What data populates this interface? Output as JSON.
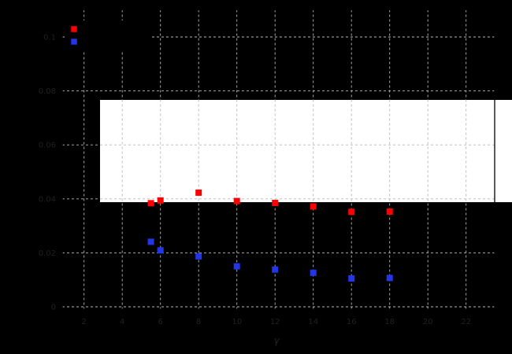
{
  "figure": {
    "background": "#000000",
    "grid_color": "#b8b8b8",
    "tick_label_color": "#202020",
    "axis_label_color": "#242424",
    "spine_color": "#000000",
    "white_box_fill": "#ffffff"
  },
  "chart_data": {
    "type": "scatter",
    "title": "",
    "xlabel": "γ",
    "ylabel": "",
    "grid": "dashed, both axes",
    "legend_position": "upper left",
    "xlim": [
      0.9,
      23.5
    ],
    "ylim": [
      0,
      0.11
    ],
    "x_ticks": [
      2,
      4,
      6,
      8,
      10,
      12,
      14,
      16,
      18,
      20,
      22
    ],
    "y_ticks": [
      0,
      0.02,
      0.04,
      0.06,
      0.08,
      0.1
    ],
    "y_tick_labels": [
      "0",
      "0.02",
      "0.04",
      "0.06",
      "0.08",
      "0.1"
    ],
    "x": [
      5.5,
      6,
      8,
      10,
      12,
      14,
      16,
      18
    ],
    "series": [
      {
        "name": "red-series",
        "label": "",
        "color": "#ff0000",
        "marker": "square",
        "y": [
          0.0384,
          0.0394,
          0.0423,
          0.0392,
          0.0385,
          0.0372,
          0.0352,
          0.0353
        ]
      },
      {
        "name": "blue-series",
        "label": "",
        "color": "#2236e8",
        "marker": "square",
        "y": [
          0.0241,
          0.0209,
          0.0187,
          0.015,
          0.0138,
          0.0126,
          0.0105,
          0.0107
        ]
      }
    ],
    "annotations": [
      {
        "type": "white-rectangle",
        "fill": "#ffffff",
        "note": "large white box overlapping the plot area from x≈2.8 to beyond the right spine, y≈0.039 to 0.077; dashed gray gridlines and black right spine visible on top of it"
      }
    ]
  },
  "legend": {
    "entries": [
      {
        "label": "",
        "swatch_color": "#ff0000"
      },
      {
        "label": "",
        "swatch_color": "#2236e8"
      }
    ]
  }
}
